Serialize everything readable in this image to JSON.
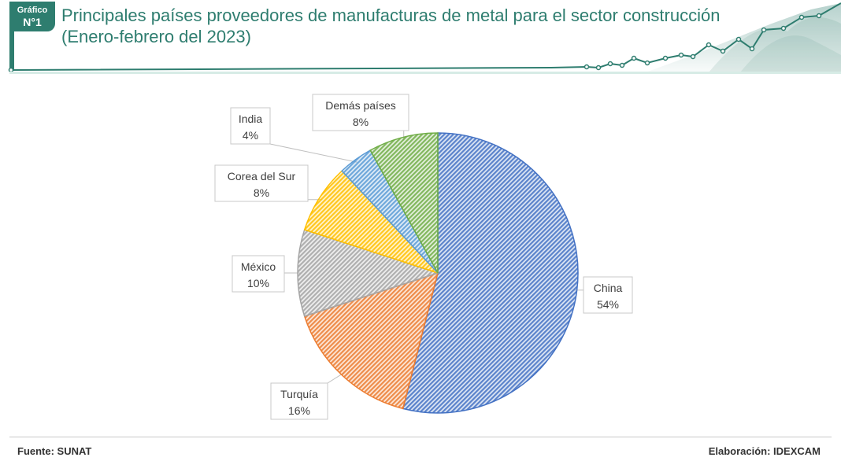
{
  "header": {
    "badge_line1": "Gráfico",
    "badge_line2": "N°1",
    "title_line1": "Principales países proveedores de manufacturas de metal para el sector construcción",
    "title_line2": "(Enero-febrero del 2023)",
    "accent_color": "#2e7d6f"
  },
  "chart_data": {
    "type": "pie",
    "title": "",
    "categories": [
      "China",
      "Turquía",
      "México",
      "Corea del Sur",
      "India",
      "Demás países"
    ],
    "values": [
      54,
      16,
      10,
      8,
      4,
      8
    ],
    "value_labels": [
      "54%",
      "16%",
      "10%",
      "8%",
      "4%",
      "8%"
    ],
    "colors": [
      "#4472c4",
      "#ed7d31",
      "#a5a5a5",
      "#ffc000",
      "#5b9bd5",
      "#70ad47"
    ],
    "fill": "hatched",
    "legend": "none",
    "start_angle_deg": 0,
    "direction": "clockwise"
  },
  "footer": {
    "source": "Fuente: SUNAT",
    "credit": "Elaboración: IDEXCAM"
  }
}
